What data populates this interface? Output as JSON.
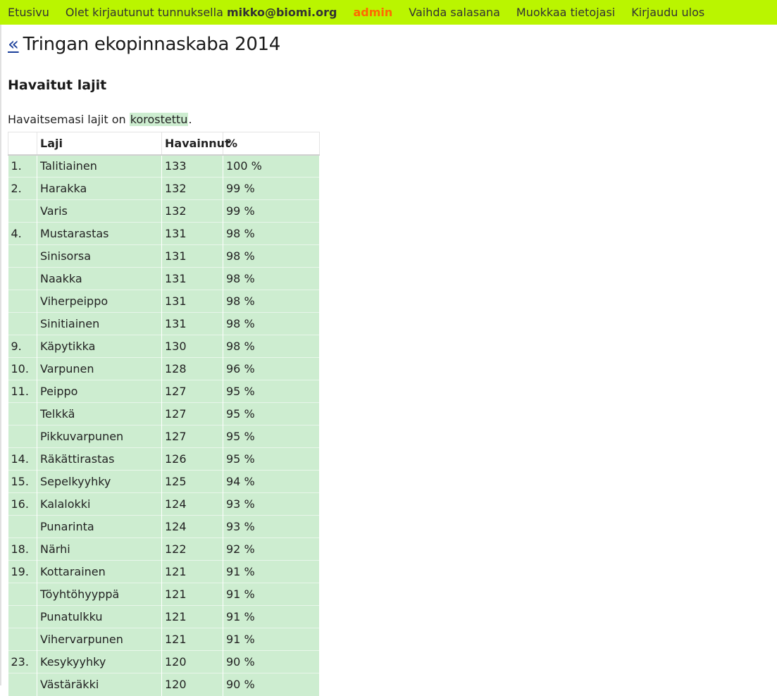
{
  "topbar": {
    "home": "Etusivu",
    "login_prefix": "Olet kirjautunut tunnuksella",
    "user": "mikko@biomi.org",
    "admin": "admin",
    "change_password": "Vaihda salasana",
    "edit_profile": "Muokkaa tietojasi",
    "logout": "Kirjaudu ulos"
  },
  "page": {
    "back_link": "«",
    "title": "Tringan ekopinnaskaba 2014",
    "section_title": "Havaitut lajit",
    "intro_text": "Havaitsemasi lajit on",
    "intro_highlight": "korostettu",
    "intro_end": "."
  },
  "table": {
    "headers": [
      "",
      "Laji",
      "Havainnut",
      "%"
    ],
    "rows": [
      {
        "rank": "1.",
        "name": "Talitiainen",
        "count": "133",
        "pct": "100 %"
      },
      {
        "rank": "2.",
        "name": "Harakka",
        "count": "132",
        "pct": "99 %"
      },
      {
        "rank": "",
        "name": "Varis",
        "count": "132",
        "pct": "99 %"
      },
      {
        "rank": "4.",
        "name": "Mustarastas",
        "count": "131",
        "pct": "98 %"
      },
      {
        "rank": "",
        "name": "Sinisorsa",
        "count": "131",
        "pct": "98 %"
      },
      {
        "rank": "",
        "name": "Naakka",
        "count": "131",
        "pct": "98 %"
      },
      {
        "rank": "",
        "name": "Viherpeippo",
        "count": "131",
        "pct": "98 %"
      },
      {
        "rank": "",
        "name": "Sinitiainen",
        "count": "131",
        "pct": "98 %"
      },
      {
        "rank": "9.",
        "name": "Käpytikka",
        "count": "130",
        "pct": "98 %"
      },
      {
        "rank": "10.",
        "name": "Varpunen",
        "count": "128",
        "pct": "96 %"
      },
      {
        "rank": "11.",
        "name": "Peippo",
        "count": "127",
        "pct": "95 %"
      },
      {
        "rank": "",
        "name": "Telkkä",
        "count": "127",
        "pct": "95 %"
      },
      {
        "rank": "",
        "name": "Pikkuvarpunen",
        "count": "127",
        "pct": "95 %"
      },
      {
        "rank": "14.",
        "name": "Räkättirastas",
        "count": "126",
        "pct": "95 %"
      },
      {
        "rank": "15.",
        "name": "Sepelkyyhky",
        "count": "125",
        "pct": "94 %"
      },
      {
        "rank": "16.",
        "name": "Kalalokki",
        "count": "124",
        "pct": "93 %"
      },
      {
        "rank": "",
        "name": "Punarinta",
        "count": "124",
        "pct": "93 %"
      },
      {
        "rank": "18.",
        "name": "Närhi",
        "count": "122",
        "pct": "92 %"
      },
      {
        "rank": "19.",
        "name": "Kottarainen",
        "count": "121",
        "pct": "91 %"
      },
      {
        "rank": "",
        "name": "Töyhtöhyyppä",
        "count": "121",
        "pct": "91 %"
      },
      {
        "rank": "",
        "name": "Punatulkku",
        "count": "121",
        "pct": "91 %"
      },
      {
        "rank": "",
        "name": "Vihervarpunen",
        "count": "121",
        "pct": "91 %"
      },
      {
        "rank": "23.",
        "name": "Kesykyyhky",
        "count": "120",
        "pct": "90 %"
      },
      {
        "rank": "",
        "name": "Västäräkki",
        "count": "120",
        "pct": "90 %"
      }
    ]
  },
  "colors": {
    "topbar_bg": "#baf500",
    "admin": "#ff6a00",
    "highlight_row": "#cdedd0"
  }
}
